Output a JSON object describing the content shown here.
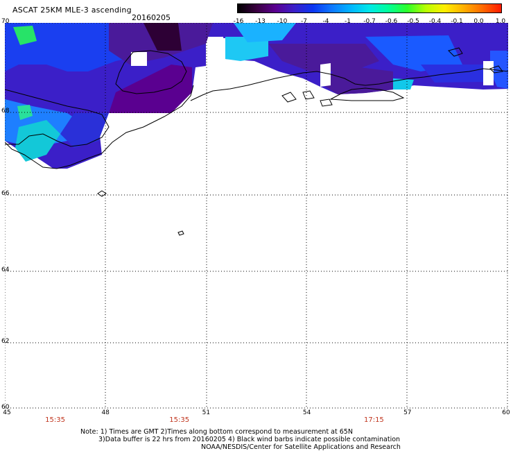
{
  "title": "ASCAT 25KM MLE-3 ascending",
  "date": "20160205",
  "colorbar": {
    "labels": [
      "-16",
      "-13",
      "-10",
      "-7",
      "-4",
      "-1",
      "-0.7",
      "-0.6",
      "-0.5",
      "-0.4",
      "-0.1",
      "0.0",
      "1.0"
    ],
    "colors": [
      "#000000",
      "#3a0040",
      "#5a0090",
      "#3b1fc8",
      "#0b36f2",
      "#0d78ff",
      "#00b5ff",
      "#00e8e8",
      "#00ff9a",
      "#2bff2b",
      "#b8ff00",
      "#ffee00",
      "#ffb000",
      "#ff6a00",
      "#ff1a00"
    ]
  },
  "map": {
    "lat_labels": [
      "70",
      "68",
      "66",
      "64",
      "62",
      "60"
    ],
    "lon_labels": [
      "45",
      "48",
      "51",
      "54",
      "57",
      "60"
    ],
    "lat_range": [
      60,
      70
    ],
    "lon_range": [
      45,
      60
    ],
    "grid": "dotted"
  },
  "times": [
    {
      "label": "15:35",
      "lon": 46.5
    },
    {
      "label": "15:35",
      "lon": 50.2
    },
    {
      "label": "17:15",
      "lon": 56.0
    }
  ],
  "notes": [
    "Note: 1) Times are GMT 2)Times along bottom correspond to measurement at 65N",
    "3)Data buffer is 22 hrs from 20160205 4) Black wind barbs indicate possible contamination",
    "NOAA/NESDIS/Center for Satellite Applications and Research"
  ]
}
